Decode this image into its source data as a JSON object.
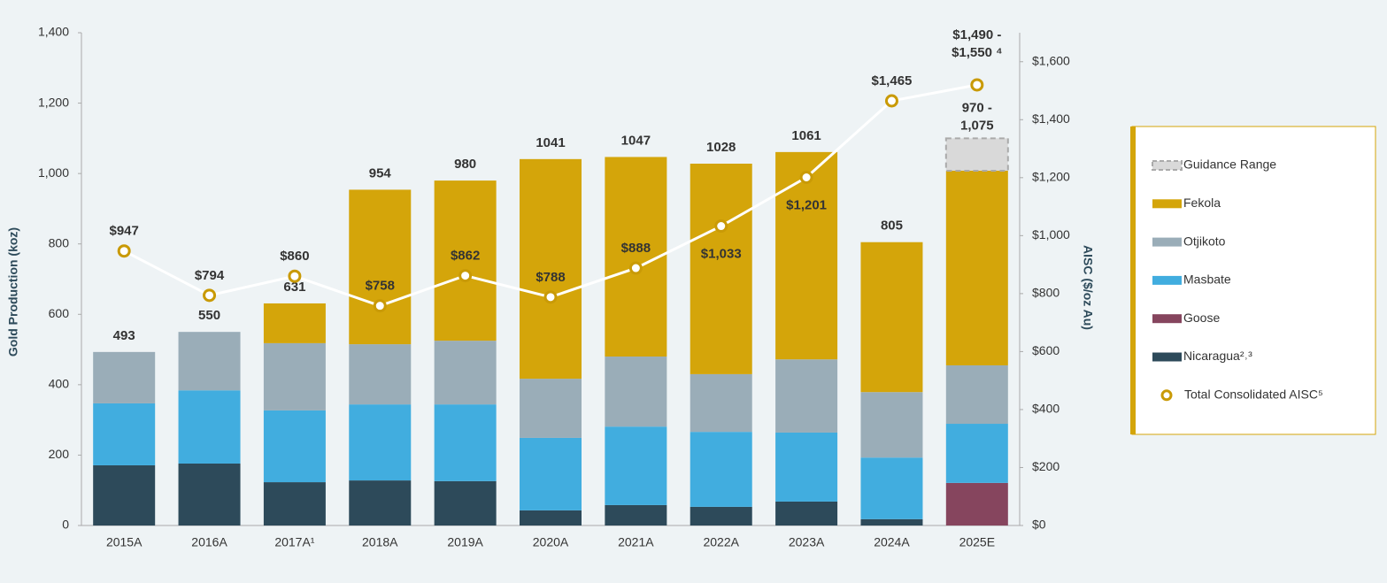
{
  "chart_data": {
    "type": "bar",
    "y_label": "Gold Production (koz)",
    "y2_label": "AISC ($/oz Au)",
    "categories": [
      "2015A",
      "2016A",
      "2017A¹",
      "2018A",
      "2019A",
      "2020A",
      "2021A",
      "2022A",
      "2023A",
      "2024A",
      "2025E"
    ],
    "series": [
      {
        "name": "Nicaragua²˒³",
        "color": "#2d4a5a",
        "values": [
          171,
          176,
          123,
          128,
          126,
          43,
          58,
          53,
          68,
          18,
          null
        ]
      },
      {
        "name": "Goose",
        "color": "#86455e",
        "values": [
          null,
          null,
          null,
          null,
          null,
          null,
          null,
          null,
          null,
          null,
          121
        ]
      },
      {
        "name": "Masbate",
        "color": "#41addf",
        "values": [
          176,
          208,
          204,
          216,
          218,
          206,
          223,
          213,
          196,
          175,
          168
        ]
      },
      {
        "name": "Otjikoto",
        "color": "#9aadb8",
        "values": [
          146,
          166,
          191,
          171,
          181,
          168,
          199,
          164,
          208,
          186,
          166
        ]
      },
      {
        "name": "Fekola",
        "color": "#d4a50a",
        "values": [
          null,
          null,
          113,
          439,
          455,
          624,
          567,
          598,
          589,
          426,
          553
        ]
      },
      {
        "name": "Guidance Range",
        "color": "#d9d9d9",
        "dashed": true,
        "values": [
          null,
          null,
          null,
          null,
          null,
          null,
          null,
          null,
          null,
          null,
          92
        ]
      },
      {
        "name": "Total Consolidated AISC⁵",
        "type": "line",
        "axis": "y2",
        "color": "#c99a06",
        "values": [
          947,
          794,
          860,
          758,
          862,
          788,
          888,
          1033,
          1201,
          1465,
          1520
        ],
        "value_labels": [
          "$947",
          "$794",
          "$860",
          "$758",
          "$862",
          "$788",
          "$888",
          "$1,033",
          "$1,201",
          "$1,465",
          "$1,490 - $1,550 ⁴"
        ]
      }
    ],
    "totals": [
      493,
      550,
      631,
      954,
      980,
      1041,
      1047,
      1028,
      1061,
      805,
      null
    ],
    "guidance_label": "970 - 1,075",
    "ylim": [
      0,
      1400
    ],
    "yticks": [
      0,
      200,
      400,
      600,
      800,
      {
        "value": 1000,
        "label": "1,000"
      },
      {
        "value": 1200,
        "label": "1,200"
      },
      {
        "value": 1400,
        "label": "1,400"
      }
    ],
    "y2lim": [
      0,
      1700
    ],
    "y2ticks": [
      {
        "value": 0,
        "label": "$0"
      },
      {
        "value": 200,
        "label": "$200"
      },
      {
        "value": 400,
        "label": "$400"
      },
      {
        "value": 600,
        "label": "$600"
      },
      {
        "value": 800,
        "label": "$800"
      },
      {
        "value": 1000,
        "label": "$1,000"
      },
      {
        "value": 1200,
        "label": "$1,200"
      },
      {
        "value": 1400,
        "label": "$1,400"
      },
      {
        "value": 1600,
        "label": "$1,600"
      }
    ],
    "legend": "right"
  }
}
